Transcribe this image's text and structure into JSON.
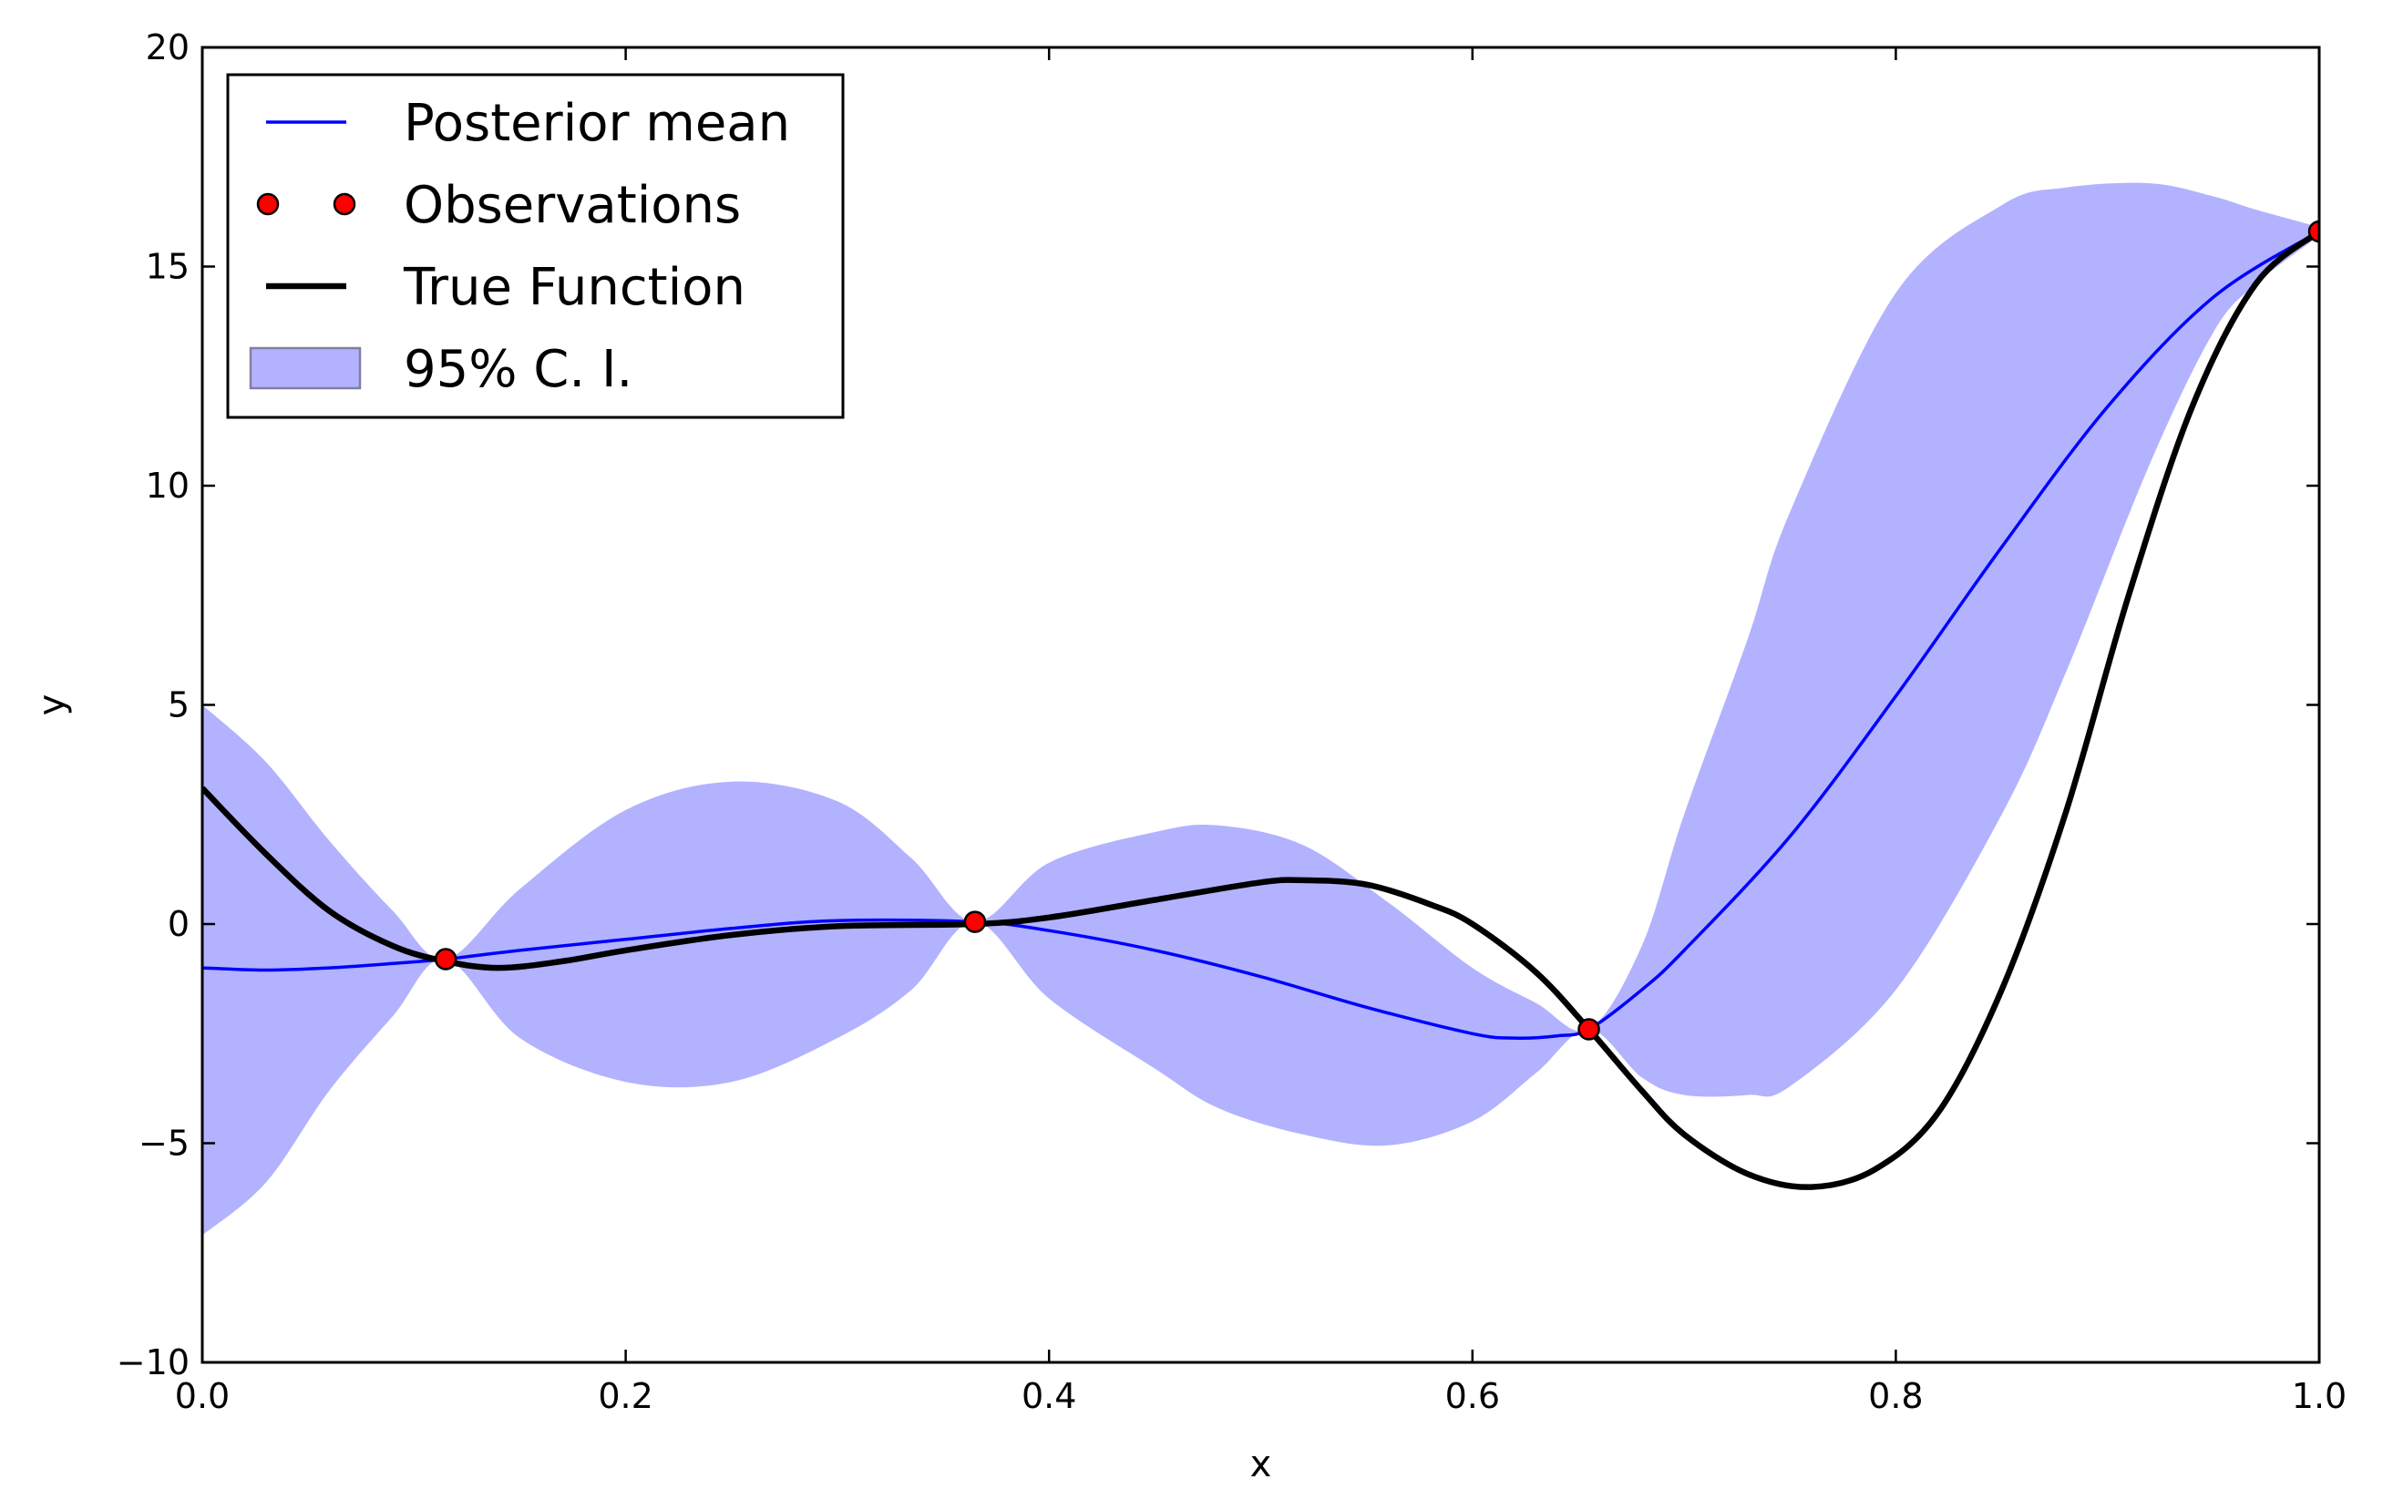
{
  "chart_data": {
    "type": "line",
    "xlabel": "x",
    "ylabel": "y",
    "xlim": [
      0.0,
      1.0
    ],
    "ylim": [
      -10,
      20
    ],
    "x_ticks": [
      0.0,
      0.2,
      0.4,
      0.6,
      0.8,
      1.0
    ],
    "x_tick_labels": [
      "0.0",
      "0.2",
      "0.4",
      "0.6",
      "0.8",
      "1.0"
    ],
    "y_ticks": [
      -10,
      -5,
      0,
      5,
      10,
      15,
      20
    ],
    "y_tick_labels": [
      "−10",
      "−5",
      "0",
      "5",
      "10",
      "15",
      "20"
    ],
    "grid": false,
    "legend_position": "top-left",
    "colors": {
      "posterior_mean": "#0000ff",
      "true_function": "#000000",
      "observations": "#ff0000",
      "ci_fill": "#b2b2ff"
    },
    "legend": [
      {
        "label": "Posterior mean",
        "kind": "line"
      },
      {
        "label": "Observations",
        "kind": "points"
      },
      {
        "label": "True Function",
        "kind": "thick-line"
      },
      {
        "label": "95% C. I.",
        "kind": "fill"
      }
    ],
    "series": [
      {
        "name": "Posterior mean",
        "x": [
          0.0,
          0.03,
          0.06,
          0.09,
          0.115,
          0.15,
          0.2,
          0.25,
          0.3,
          0.365,
          0.4,
          0.45,
          0.5,
          0.55,
          0.6,
          0.62,
          0.64,
          0.655,
          0.68,
          0.7,
          0.75,
          0.8,
          0.85,
          0.9,
          0.95,
          1.0
        ],
        "y": [
          -1.0,
          -1.05,
          -1.0,
          -0.9,
          -0.8,
          -0.6,
          -0.35,
          -0.1,
          0.08,
          0.05,
          -0.15,
          -0.6,
          -1.2,
          -1.9,
          -2.5,
          -2.6,
          -2.55,
          -2.4,
          -1.5,
          -0.6,
          2.0,
          5.2,
          8.6,
          11.8,
          14.3,
          15.8
        ]
      },
      {
        "name": "True Function",
        "x": [
          0.0,
          0.03,
          0.06,
          0.09,
          0.115,
          0.14,
          0.17,
          0.2,
          0.25,
          0.3,
          0.365,
          0.4,
          0.45,
          0.5,
          0.52,
          0.55,
          0.58,
          0.6,
          0.63,
          0.655,
          0.68,
          0.7,
          0.73,
          0.76,
          0.79,
          0.82,
          0.85,
          0.88,
          0.91,
          0.94,
          0.97,
          1.0
        ],
        "y": [
          3.1,
          1.6,
          0.3,
          -0.5,
          -0.85,
          -1.0,
          -0.85,
          -0.6,
          -0.25,
          -0.05,
          0.0,
          0.15,
          0.55,
          0.95,
          1.0,
          0.9,
          0.45,
          0.0,
          -1.1,
          -2.4,
          -3.8,
          -4.8,
          -5.7,
          -6.0,
          -5.6,
          -4.3,
          -1.5,
          2.5,
          7.5,
          11.8,
          14.6,
          15.8
        ]
      },
      {
        "name": "Observations",
        "x": [
          0.115,
          0.365,
          0.655,
          1.0
        ],
        "y": [
          -0.8,
          0.05,
          -2.4,
          15.8
        ]
      },
      {
        "name": "95% C. I.",
        "x": [
          0.0,
          0.03,
          0.06,
          0.09,
          0.115,
          0.15,
          0.2,
          0.25,
          0.3,
          0.335,
          0.365,
          0.4,
          0.45,
          0.48,
          0.52,
          0.56,
          0.6,
          0.63,
          0.655,
          0.68,
          0.7,
          0.73,
          0.75,
          0.8,
          0.85,
          0.88,
          0.92,
          0.95,
          0.97,
          1.0
        ],
        "upper": [
          5.0,
          3.7,
          1.9,
          0.3,
          -0.8,
          0.8,
          2.6,
          3.25,
          2.8,
          1.5,
          0.05,
          1.4,
          2.1,
          2.25,
          1.8,
          0.5,
          -1.0,
          -1.8,
          -2.4,
          -0.5,
          2.5,
          6.5,
          9.4,
          14.4,
          16.4,
          16.8,
          16.9,
          16.6,
          16.3,
          15.9
        ],
        "lower": [
          -7.1,
          -5.9,
          -3.8,
          -2.1,
          -0.8,
          -2.6,
          -3.6,
          -3.6,
          -2.6,
          -1.5,
          0.05,
          -1.7,
          -3.3,
          -4.2,
          -4.8,
          -5.05,
          -4.5,
          -3.4,
          -2.4,
          -3.5,
          -3.9,
          -3.9,
          -3.7,
          -1.5,
          2.5,
          5.7,
          10.5,
          13.5,
          14.6,
          15.7
        ]
      }
    ]
  }
}
